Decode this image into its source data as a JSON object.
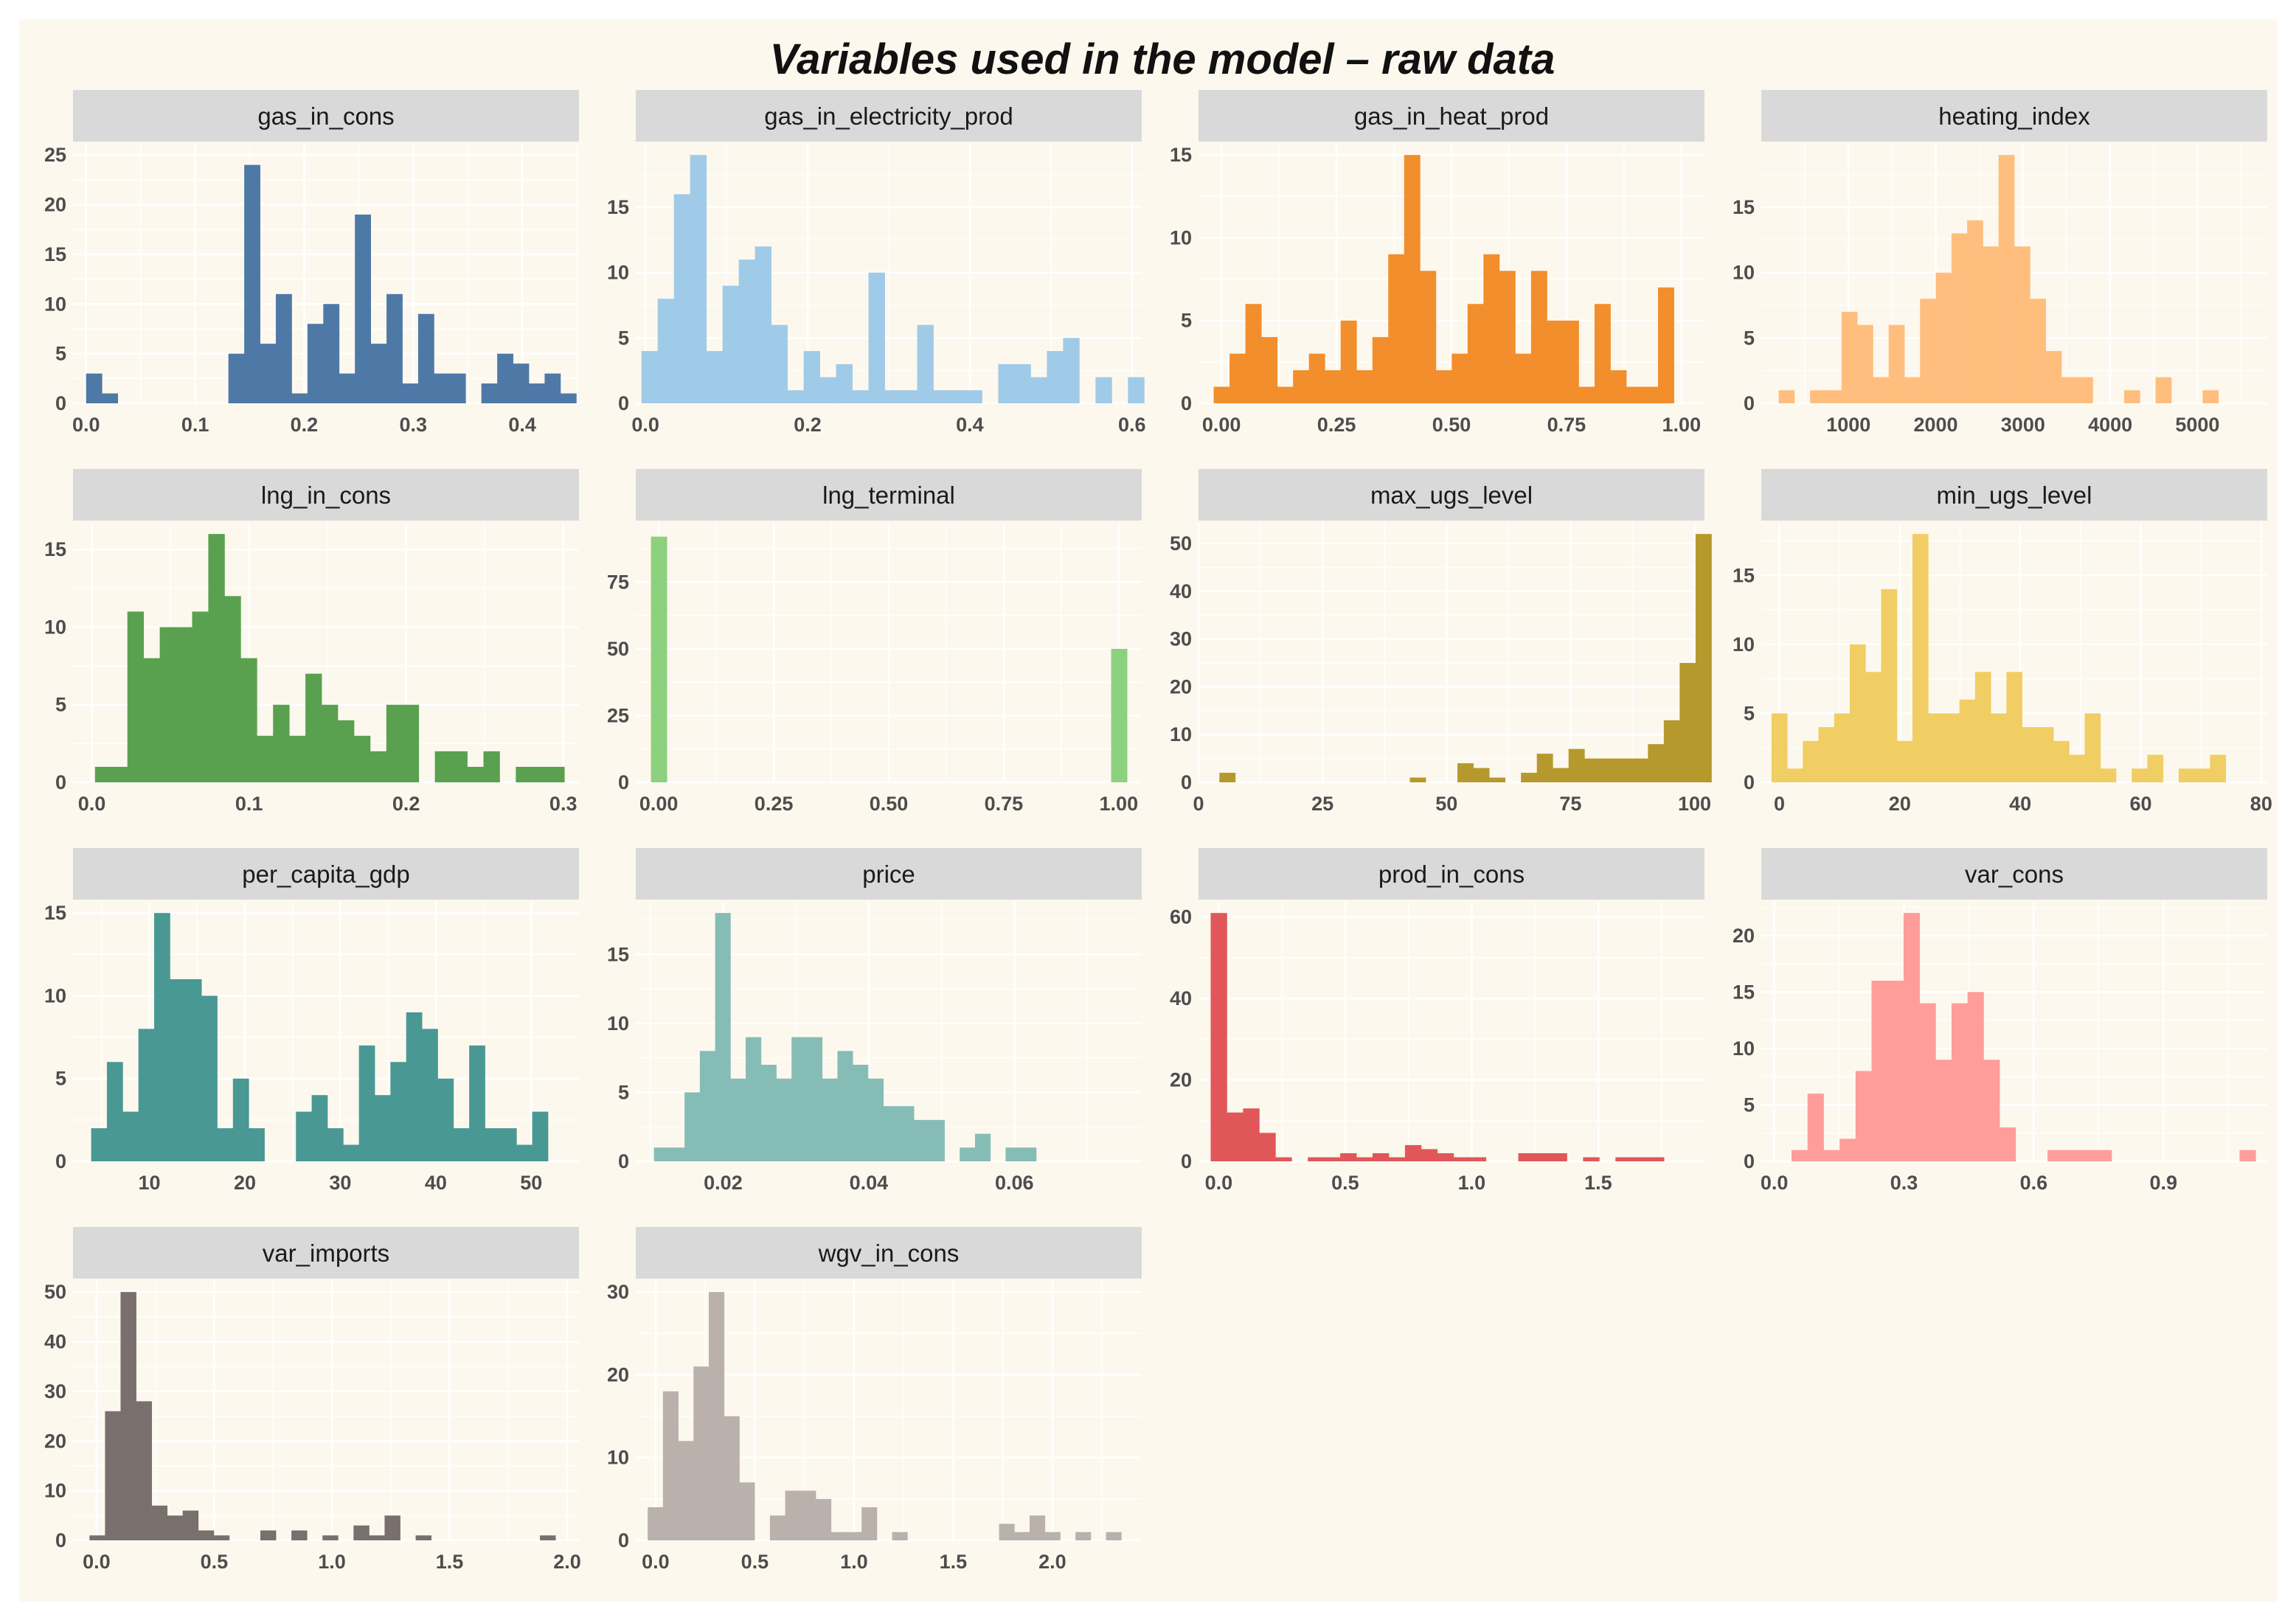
{
  "title": "Variables used in the model – raw data",
  "chart_data": [
    {
      "type": "histogram",
      "facet": "gas_in_cons",
      "color": "#4e79a7",
      "xlim": [
        -0.012,
        0.452
      ],
      "ylim": [
        0,
        25
      ],
      "bin_width": 0.0145,
      "bin_start": 0.0,
      "counts": [
        3,
        1,
        0,
        0,
        0,
        0,
        0,
        0,
        0,
        5,
        24,
        6,
        11,
        1,
        8,
        10,
        3,
        19,
        6,
        11,
        2,
        9,
        3,
        3,
        0,
        2,
        5,
        4,
        2,
        3,
        1
      ],
      "x_ticks": [
        {
          "v": 0,
          "label": "0.0"
        },
        {
          "v": 0.1,
          "label": "0.1"
        },
        {
          "v": 0.2,
          "label": "0.2"
        },
        {
          "v": 0.3,
          "label": "0.3"
        },
        {
          "v": 0.4,
          "label": "0.4"
        }
      ],
      "y_ticks": [
        {
          "v": 0,
          "label": "0"
        },
        {
          "v": 5,
          "label": "5"
        },
        {
          "v": 10,
          "label": "10"
        },
        {
          "v": 15,
          "label": "15"
        },
        {
          "v": 20,
          "label": "20"
        },
        {
          "v": 25,
          "label": "25"
        }
      ]
    },
    {
      "type": "histogram",
      "facet": "gas_in_electricity_prod",
      "color": "#a0cbe8",
      "xlim": [
        -0.012,
        0.612
      ],
      "ylim": [
        0,
        19
      ],
      "bin_width": 0.02,
      "bin_start": -0.005,
      "counts": [
        4,
        8,
        16,
        19,
        4,
        9,
        11,
        12,
        6,
        1,
        4,
        2,
        3,
        1,
        10,
        1,
        1,
        6,
        1,
        1,
        1,
        0,
        3,
        3,
        2,
        4,
        5,
        0,
        2,
        0,
        2
      ],
      "x_ticks": [
        {
          "v": 0,
          "label": "0.0"
        },
        {
          "v": 0.2,
          "label": "0.2"
        },
        {
          "v": 0.4,
          "label": "0.4"
        },
        {
          "v": 0.6,
          "label": "0.6"
        }
      ],
      "y_ticks": [
        {
          "v": 0,
          "label": "0"
        },
        {
          "v": 5,
          "label": "5"
        },
        {
          "v": 10,
          "label": "10"
        },
        {
          "v": 15,
          "label": "15"
        }
      ]
    },
    {
      "type": "histogram",
      "facet": "gas_in_heat_prod",
      "color": "#f28e2b",
      "xlim": [
        -0.05,
        1.05
      ],
      "ylim": [
        0,
        15
      ],
      "bin_width": 0.0345,
      "bin_start": -0.017,
      "counts": [
        1,
        3,
        6,
        4,
        1,
        2,
        3,
        2,
        5,
        2,
        4,
        9,
        15,
        8,
        2,
        3,
        6,
        9,
        8,
        3,
        8,
        5,
        5,
        1,
        6,
        2,
        1,
        1,
        7,
        0
      ],
      "x_ticks": [
        {
          "v": 0,
          "label": "0.00"
        },
        {
          "v": 0.25,
          "label": "0.25"
        },
        {
          "v": 0.5,
          "label": "0.50"
        },
        {
          "v": 0.75,
          "label": "0.75"
        },
        {
          "v": 1.0,
          "label": "1.00"
        }
      ],
      "y_ticks": [
        {
          "v": 0,
          "label": "0"
        },
        {
          "v": 5,
          "label": "5"
        },
        {
          "v": 10,
          "label": "10"
        },
        {
          "v": 15,
          "label": "15"
        }
      ]
    },
    {
      "type": "histogram",
      "facet": "heating_index",
      "color": "#ffbe7d",
      "xlim": [
        0,
        5800
      ],
      "ylim": [
        0,
        19
      ],
      "bin_width": 180,
      "bin_start": 200,
      "counts": [
        1,
        0,
        1,
        1,
        7,
        6,
        2,
        6,
        2,
        8,
        10,
        13,
        14,
        12,
        19,
        12,
        8,
        4,
        2,
        2,
        0,
        0,
        1,
        0,
        2,
        0,
        0,
        1
      ],
      "x_ticks": [
        {
          "v": 1000,
          "label": "1000"
        },
        {
          "v": 2000,
          "label": "2000"
        },
        {
          "v": 3000,
          "label": "3000"
        },
        {
          "v": 4000,
          "label": "4000"
        },
        {
          "v": 5000,
          "label": "5000"
        }
      ],
      "y_ticks": [
        {
          "v": 0,
          "label": "0"
        },
        {
          "v": 5,
          "label": "5"
        },
        {
          "v": 10,
          "label": "10"
        },
        {
          "v": 15,
          "label": "15"
        }
      ]
    },
    {
      "type": "histogram",
      "facet": "lng_in_cons",
      "color": "#59a14f",
      "xlim": [
        -0.012,
        0.31
      ],
      "ylim": [
        0,
        16
      ],
      "bin_width": 0.0103,
      "bin_start": 0.002,
      "counts": [
        1,
        1,
        11,
        8,
        10,
        10,
        11,
        16,
        12,
        8,
        3,
        5,
        3,
        7,
        5,
        4,
        3,
        2,
        5,
        5,
        0,
        2,
        2,
        1,
        2,
        0,
        1,
        1,
        1
      ],
      "x_ticks": [
        {
          "v": 0,
          "label": "0.0"
        },
        {
          "v": 0.1,
          "label": "0.1"
        },
        {
          "v": 0.2,
          "label": "0.2"
        },
        {
          "v": 0.3,
          "label": "0.3"
        }
      ],
      "y_ticks": [
        {
          "v": 0,
          "label": "0"
        },
        {
          "v": 5,
          "label": "5"
        },
        {
          "v": 10,
          "label": "10"
        },
        {
          "v": 15,
          "label": "15"
        }
      ]
    },
    {
      "type": "histogram",
      "facet": "lng_terminal",
      "color": "#8cd17d",
      "xlim": [
        -0.05,
        1.05
      ],
      "ylim": [
        0,
        93
      ],
      "bin_width": 0.0345,
      "bin_start": -0.017,
      "counts": [
        92,
        0,
        0,
        0,
        0,
        0,
        0,
        0,
        0,
        0,
        0,
        0,
        0,
        0,
        0,
        0,
        0,
        0,
        0,
        0,
        0,
        0,
        0,
        0,
        0,
        0,
        0,
        0,
        0,
        50
      ],
      "x_ticks": [
        {
          "v": 0,
          "label": "0.00"
        },
        {
          "v": 0.25,
          "label": "0.25"
        },
        {
          "v": 0.5,
          "label": "0.50"
        },
        {
          "v": 0.75,
          "label": "0.75"
        },
        {
          "v": 1.0,
          "label": "1.00"
        }
      ],
      "y_ticks": [
        {
          "v": 0,
          "label": "0"
        },
        {
          "v": 25,
          "label": "25"
        },
        {
          "v": 50,
          "label": "50"
        },
        {
          "v": 75,
          "label": "75"
        }
      ]
    },
    {
      "type": "histogram",
      "facet": "max_ugs_level",
      "color": "#b6992d",
      "xlim": [
        0,
        102
      ],
      "ylim": [
        0,
        52
      ],
      "bin_width": 3.2,
      "bin_start": 4.2,
      "counts": [
        2,
        0,
        0,
        0,
        0,
        0,
        0,
        0,
        0,
        0,
        0,
        0,
        1,
        0,
        0,
        4,
        3,
        1,
        0,
        2,
        6,
        3,
        7,
        5,
        5,
        5,
        5,
        8,
        13,
        25,
        52
      ],
      "x_ticks": [
        {
          "v": 0,
          "label": "0"
        },
        {
          "v": 25,
          "label": "25"
        },
        {
          "v": 50,
          "label": "50"
        },
        {
          "v": 75,
          "label": "75"
        },
        {
          "v": 100,
          "label": "100"
        }
      ],
      "y_ticks": [
        {
          "v": 0,
          "label": "0"
        },
        {
          "v": 10,
          "label": "10"
        },
        {
          "v": 20,
          "label": "20"
        },
        {
          "v": 30,
          "label": "30"
        },
        {
          "v": 40,
          "label": "40"
        },
        {
          "v": 50,
          "label": "50"
        }
      ]
    },
    {
      "type": "histogram",
      "facet": "min_ugs_level",
      "color": "#f1ce63",
      "xlim": [
        -3,
        81
      ],
      "ylim": [
        0,
        18
      ],
      "bin_width": 2.6,
      "bin_start": -1.3,
      "counts": [
        5,
        1,
        3,
        4,
        5,
        10,
        8,
        14,
        3,
        18,
        5,
        5,
        6,
        8,
        5,
        8,
        4,
        4,
        3,
        2,
        5,
        1,
        0,
        1,
        2,
        0,
        1,
        1,
        2
      ],
      "x_ticks": [
        {
          "v": 0,
          "label": "0"
        },
        {
          "v": 20,
          "label": "20"
        },
        {
          "v": 40,
          "label": "40"
        },
        {
          "v": 60,
          "label": "60"
        },
        {
          "v": 80,
          "label": "80"
        }
      ],
      "y_ticks": [
        {
          "v": 0,
          "label": "0"
        },
        {
          "v": 5,
          "label": "5"
        },
        {
          "v": 10,
          "label": "10"
        },
        {
          "v": 15,
          "label": "15"
        }
      ]
    },
    {
      "type": "histogram",
      "facet": "per_capita_gdp",
      "color": "#499894",
      "xlim": [
        2,
        55
      ],
      "ylim": [
        0,
        15
      ],
      "bin_width": 1.65,
      "bin_start": 3.9,
      "counts": [
        2,
        6,
        3,
        8,
        15,
        11,
        11,
        10,
        2,
        5,
        2,
        0,
        0,
        3,
        4,
        2,
        1,
        7,
        4,
        6,
        9,
        8,
        5,
        2,
        7,
        2,
        2,
        1,
        3
      ],
      "x_ticks": [
        {
          "v": 10,
          "label": "10"
        },
        {
          "v": 20,
          "label": "20"
        },
        {
          "v": 30,
          "label": "30"
        },
        {
          "v": 40,
          "label": "40"
        },
        {
          "v": 50,
          "label": "50"
        }
      ],
      "y_ticks": [
        {
          "v": 0,
          "label": "0"
        },
        {
          "v": 5,
          "label": "5"
        },
        {
          "v": 10,
          "label": "10"
        },
        {
          "v": 15,
          "label": "15"
        }
      ]
    },
    {
      "type": "histogram",
      "facet": "price",
      "color": "#86bcb6",
      "xlim": [
        0.008,
        0.0775
      ],
      "ylim": [
        0,
        18
      ],
      "bin_width": 0.0021,
      "bin_start": 0.0105,
      "counts": [
        1,
        1,
        5,
        8,
        18,
        6,
        9,
        7,
        6,
        9,
        9,
        6,
        8,
        7,
        6,
        4,
        4,
        3,
        3,
        0,
        1,
        2,
        0,
        1,
        1
      ],
      "x_ticks": [
        {
          "v": 0.02,
          "label": "0.02"
        },
        {
          "v": 0.04,
          "label": "0.04"
        },
        {
          "v": 0.06,
          "label": "0.06"
        }
      ],
      "y_ticks": [
        {
          "v": 0,
          "label": "0"
        },
        {
          "v": 5,
          "label": "5"
        },
        {
          "v": 10,
          "label": "10"
        },
        {
          "v": 15,
          "label": "15"
        }
      ]
    },
    {
      "type": "histogram",
      "facet": "prod_in_cons",
      "color": "#e15759",
      "xlim": [
        -0.08,
        1.92
      ],
      "ylim": [
        0,
        61
      ],
      "bin_width": 0.064,
      "bin_start": -0.032,
      "counts": [
        61,
        12,
        13,
        7,
        1,
        0,
        1,
        1,
        2,
        1,
        2,
        1,
        4,
        3,
        2,
        1,
        1,
        0,
        0,
        2,
        2,
        2,
        0,
        1,
        0,
        1,
        1,
        1
      ],
      "x_ticks": [
        {
          "v": 0,
          "label": "0.0"
        },
        {
          "v": 0.5,
          "label": "0.5"
        },
        {
          "v": 1.0,
          "label": "1.0"
        },
        {
          "v": 1.5,
          "label": "1.5"
        }
      ],
      "y_ticks": [
        {
          "v": 0,
          "label": "0"
        },
        {
          "v": 20,
          "label": "20"
        },
        {
          "v": 40,
          "label": "40"
        },
        {
          "v": 60,
          "label": "60"
        }
      ]
    },
    {
      "type": "histogram",
      "facet": "var_cons",
      "color": "#ff9d9a",
      "xlim": [
        -0.03,
        1.14
      ],
      "ylim": [
        0,
        22
      ],
      "bin_width": 0.037,
      "bin_start": 0.04,
      "counts": [
        1,
        6,
        1,
        2,
        8,
        16,
        16,
        22,
        14,
        9,
        14,
        15,
        9,
        3,
        0,
        0,
        1,
        1,
        1,
        1,
        0,
        0,
        0,
        0,
        0,
        0,
        0,
        0,
        1
      ],
      "x_ticks": [
        {
          "v": 0,
          "label": "0.0"
        },
        {
          "v": 0.3,
          "label": "0.3"
        },
        {
          "v": 0.6,
          "label": "0.6"
        },
        {
          "v": 0.9,
          "label": "0.9"
        }
      ],
      "y_ticks": [
        {
          "v": 0,
          "label": "0"
        },
        {
          "v": 5,
          "label": "5"
        },
        {
          "v": 10,
          "label": "10"
        },
        {
          "v": 15,
          "label": "15"
        },
        {
          "v": 20,
          "label": "20"
        }
      ]
    },
    {
      "type": "histogram",
      "facet": "var_imports",
      "color": "#79706e",
      "xlim": [
        -0.1,
        2.05
      ],
      "ylim": [
        0,
        50
      ],
      "bin_width": 0.066,
      "bin_start": -0.03,
      "counts": [
        1,
        26,
        50,
        28,
        7,
        5,
        6,
        2,
        1,
        0,
        0,
        2,
        0,
        2,
        0,
        1,
        0,
        3,
        1,
        5,
        0,
        1,
        0,
        0,
        0,
        0,
        0,
        0,
        0,
        1
      ],
      "x_ticks": [
        {
          "v": 0,
          "label": "0.0"
        },
        {
          "v": 0.5,
          "label": "0.5"
        },
        {
          "v": 1.0,
          "label": "1.0"
        },
        {
          "v": 1.5,
          "label": "1.5"
        },
        {
          "v": 2.0,
          "label": "2.0"
        }
      ],
      "y_ticks": [
        {
          "v": 0,
          "label": "0"
        },
        {
          "v": 10,
          "label": "10"
        },
        {
          "v": 20,
          "label": "20"
        },
        {
          "v": 30,
          "label": "30"
        },
        {
          "v": 40,
          "label": "40"
        },
        {
          "v": 50,
          "label": "50"
        }
      ]
    },
    {
      "type": "histogram",
      "facet": "wgv_in_cons",
      "color": "#bab0ac",
      "xlim": [
        -0.1,
        2.45
      ],
      "ylim": [
        0,
        30
      ],
      "bin_width": 0.077,
      "bin_start": -0.04,
      "counts": [
        4,
        18,
        12,
        21,
        30,
        15,
        7,
        0,
        3,
        6,
        6,
        5,
        1,
        1,
        4,
        0,
        1,
        0,
        0,
        0,
        0,
        0,
        0,
        2,
        1,
        3,
        1,
        0,
        1,
        0,
        1
      ],
      "x_ticks": [
        {
          "v": 0,
          "label": "0.0"
        },
        {
          "v": 0.5,
          "label": "0.5"
        },
        {
          "v": 1.0,
          "label": "1.0"
        },
        {
          "v": 1.5,
          "label": "1.5"
        },
        {
          "v": 2.0,
          "label": "2.0"
        }
      ],
      "y_ticks": [
        {
          "v": 0,
          "label": "0"
        },
        {
          "v": 10,
          "label": "10"
        },
        {
          "v": 20,
          "label": "20"
        },
        {
          "v": 30,
          "label": "30"
        }
      ]
    }
  ]
}
